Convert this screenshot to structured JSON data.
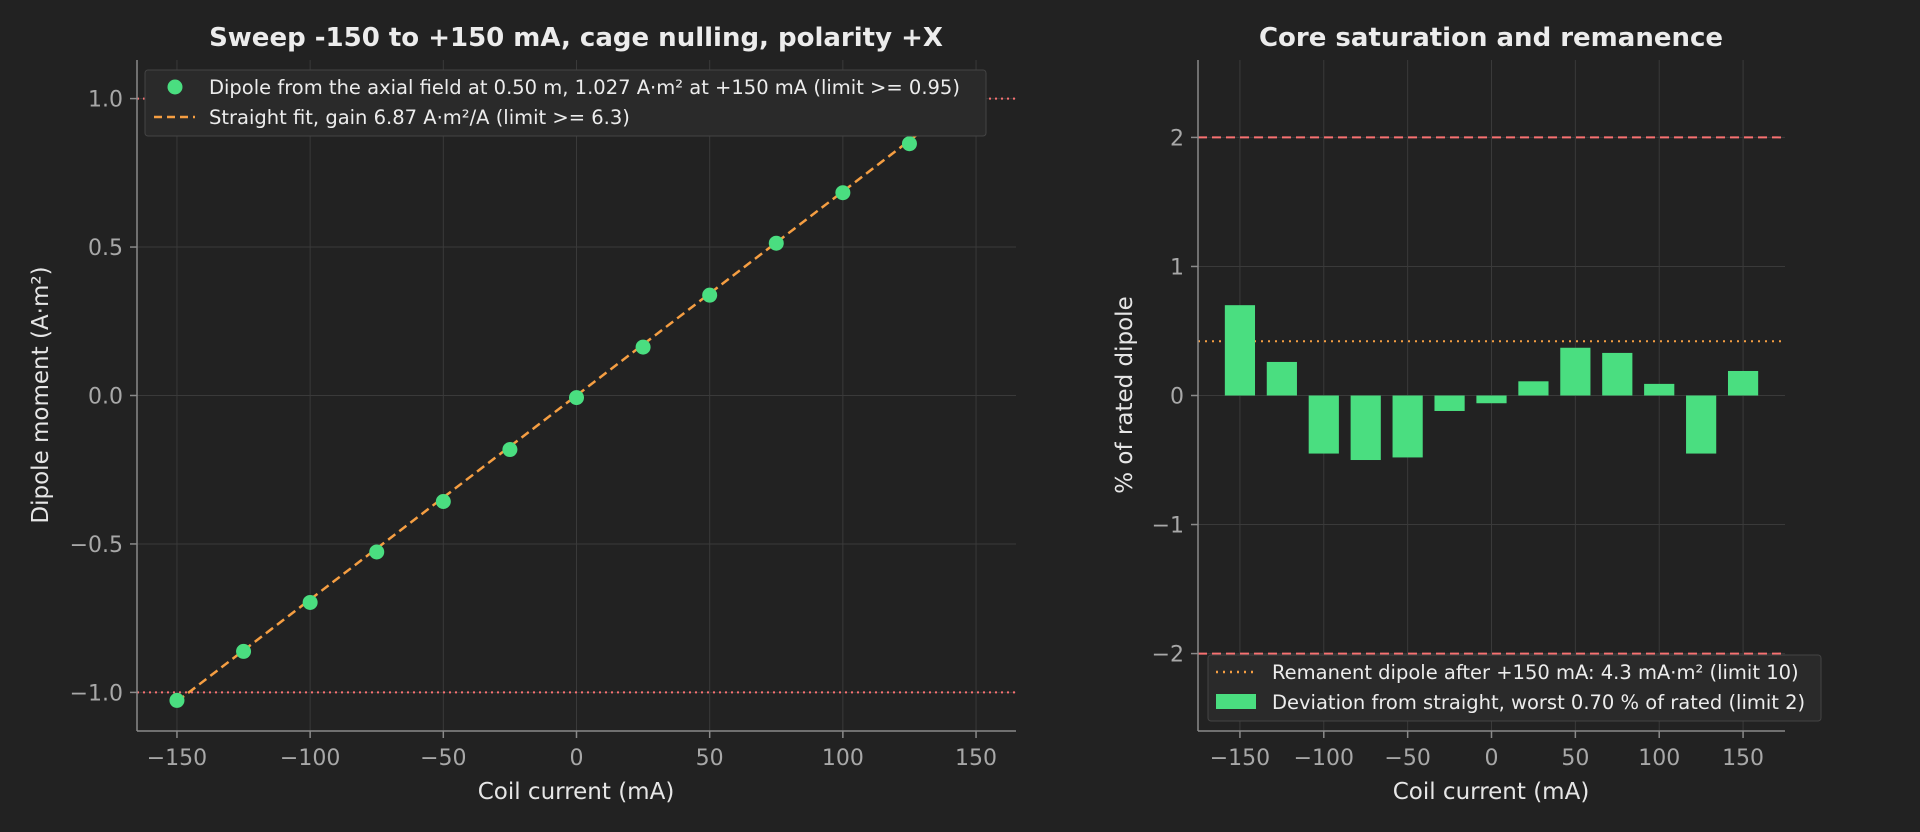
{
  "colors": {
    "background": "#222222",
    "grid": "#3a3a3a",
    "spine": "#8a8a8a",
    "points": "#4ade80",
    "fit": "#f59e42",
    "limit_red": "#f87171",
    "remanent": "#f59e42",
    "bars": "#4ade80"
  },
  "chart_data": [
    {
      "type": "scatter",
      "title": "Sweep -150 to +150 mA, cage nulling, polarity +X",
      "xlabel": "Coil current (mA)",
      "ylabel": "Dipole moment (A·m²)",
      "xlim": [
        -165,
        165
      ],
      "ylim": [
        -1.13,
        1.13
      ],
      "xticks": [
        -150,
        -100,
        -50,
        0,
        50,
        100,
        150
      ],
      "xtick_labels": [
        "−150",
        "−100",
        "−50",
        "0",
        "50",
        "100",
        "150"
      ],
      "yticks": [
        -1.0,
        -0.5,
        0.0,
        0.5,
        1.0
      ],
      "ytick_labels": [
        "−1.0",
        "−0.5",
        "0.0",
        "0.5",
        "1.0"
      ],
      "grid": true,
      "legend_position": "top-left",
      "series": [
        {
          "name": "Dipole from the axial field at 0.50 m, 1.027 A·m² at +150 mA (limit >= 0.95)",
          "kind": "points",
          "x": [
            -150,
            -125,
            -100,
            -75,
            -50,
            -25,
            0,
            25,
            50,
            75,
            100,
            125,
            150
          ],
          "y": [
            -1.027,
            -0.862,
            -0.697,
            -0.527,
            -0.357,
            -0.182,
            -0.007,
            0.163,
            0.338,
            0.513,
            0.683,
            0.848,
            1.027
          ]
        },
        {
          "name": "Straight fit, gain 6.87 A·m²/A (limit >= 6.3)",
          "kind": "dashed-line",
          "x": [
            -150,
            150
          ],
          "y": [
            -1.0305,
            1.0305
          ]
        }
      ],
      "reference_lines": [
        {
          "y": 1.0,
          "style": "dotted"
        },
        {
          "y": -1.0,
          "style": "dotted"
        }
      ]
    },
    {
      "type": "bar",
      "title": "Core saturation and remanence",
      "xlabel": "Coil current (mA)",
      "ylabel": "% of rated dipole",
      "xlim": [
        -175,
        175
      ],
      "ylim": [
        -2.6,
        2.6
      ],
      "xticks": [
        -150,
        -100,
        -50,
        0,
        50,
        100,
        150
      ],
      "xtick_labels": [
        "−150",
        "−100",
        "−50",
        "0",
        "50",
        "100",
        "150"
      ],
      "yticks": [
        -2,
        -1,
        0,
        1,
        2
      ],
      "ytick_labels": [
        "−2",
        "−1",
        "0",
        "1",
        "2"
      ],
      "grid": true,
      "legend_position": "bottom-left",
      "bar_width": 18,
      "series": [
        {
          "name": "Deviation from straight, worst 0.70 % of rated (limit 2)",
          "x": [
            -150,
            -125,
            -100,
            -75,
            -50,
            -25,
            0,
            25,
            50,
            75,
            100,
            125,
            150
          ],
          "values": [
            0.7,
            0.26,
            -0.45,
            -0.5,
            -0.48,
            -0.12,
            -0.06,
            0.11,
            0.37,
            0.33,
            0.09,
            -0.45,
            0.19
          ]
        }
      ],
      "reference_lines": [
        {
          "name": "Remanent dipole after +150 mA: 4.3 mA·m² (limit 10)",
          "y": 0.42,
          "style": "dotted"
        },
        {
          "y": 2.0,
          "style": "dashed"
        },
        {
          "y": -2.0,
          "style": "dashed"
        }
      ]
    }
  ]
}
